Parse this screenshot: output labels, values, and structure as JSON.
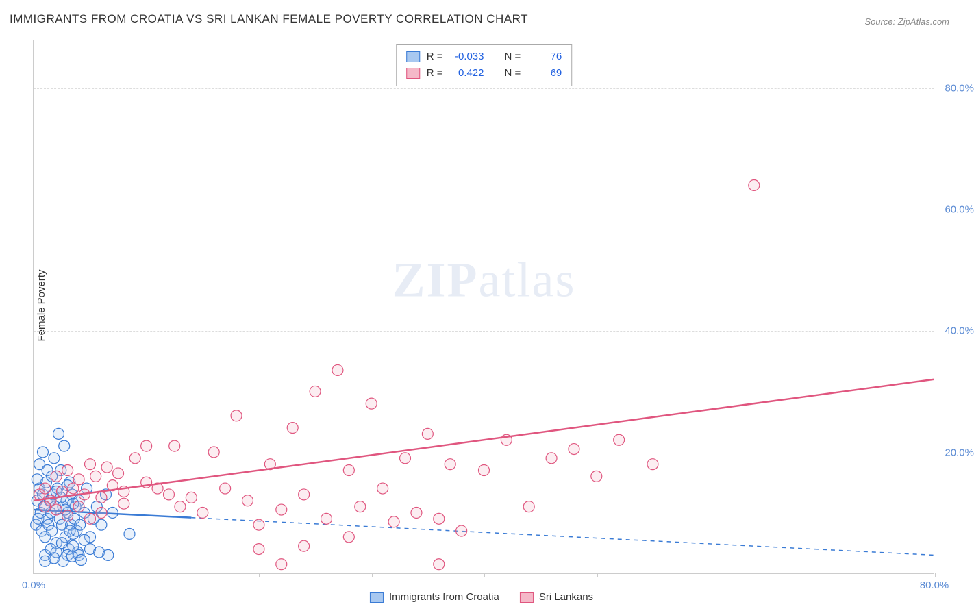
{
  "title": "IMMIGRANTS FROM CROATIA VS SRI LANKAN FEMALE POVERTY CORRELATION CHART",
  "source": "Source: ZipAtlas.com",
  "ylabel": "Female Poverty",
  "watermark_bold": "ZIP",
  "watermark_light": "atlas",
  "chart": {
    "type": "scatter",
    "background_color": "#ffffff",
    "grid_color": "#dddddd",
    "axis_color": "#cccccc",
    "tick_label_color": "#5b8bd4",
    "xlim": [
      0,
      80
    ],
    "ylim": [
      0,
      88
    ],
    "ytick_values": [
      20,
      40,
      60,
      80
    ],
    "ytick_labels": [
      "20.0%",
      "40.0%",
      "60.0%",
      "80.0%"
    ],
    "xtick_values": [
      0,
      10,
      20,
      30,
      40,
      50,
      60,
      70,
      80
    ],
    "x_origin_label": "0.0%",
    "x_end_label": "80.0%",
    "marker_radius": 8,
    "marker_stroke_width": 1.2,
    "marker_fill_opacity": 0.25,
    "trend_line_width": 2.5
  },
  "series": [
    {
      "key": "croatia",
      "label": "Immigrants from Croatia",
      "color_stroke": "#3a7bd5",
      "color_fill": "#a8c8f0",
      "R": "-0.033",
      "N": "76",
      "trend": {
        "x1": 0,
        "y1": 10.5,
        "x2": 80,
        "y2": 3.0,
        "solid_until_x": 14,
        "dashed_after": true
      },
      "points": [
        [
          0.2,
          8
        ],
        [
          0.3,
          12
        ],
        [
          0.4,
          9
        ],
        [
          0.5,
          14
        ],
        [
          0.6,
          10
        ],
        [
          0.7,
          7
        ],
        [
          0.8,
          13
        ],
        [
          0.9,
          11
        ],
        [
          1.0,
          6
        ],
        [
          1.1,
          15
        ],
        [
          1.2,
          9
        ],
        [
          1.3,
          8
        ],
        [
          1.4,
          12
        ],
        [
          1.5,
          10
        ],
        [
          1.6,
          7
        ],
        [
          1.7,
          13
        ],
        [
          1.8,
          19
        ],
        [
          1.9,
          11
        ],
        [
          2.0,
          5
        ],
        [
          2.1,
          14
        ],
        [
          2.2,
          23
        ],
        [
          2.3,
          9
        ],
        [
          2.4,
          17
        ],
        [
          2.5,
          8
        ],
        [
          2.6,
          11
        ],
        [
          2.7,
          21
        ],
        [
          2.8,
          6
        ],
        [
          2.9,
          12
        ],
        [
          3.0,
          10
        ],
        [
          3.1,
          4
        ],
        [
          3.2,
          15
        ],
        [
          3.3,
          8
        ],
        [
          3.4,
          13
        ],
        [
          3.5,
          6.5
        ],
        [
          3.6,
          9
        ],
        [
          3.7,
          11
        ],
        [
          3.8,
          7
        ],
        [
          3.9,
          3.5
        ],
        [
          4.0,
          12
        ],
        [
          4.1,
          8
        ],
        [
          4.5,
          10
        ],
        [
          4.7,
          14
        ],
        [
          5.0,
          6
        ],
        [
          5.3,
          9
        ],
        [
          5.6,
          11
        ],
        [
          6.0,
          8
        ],
        [
          6.4,
          13
        ],
        [
          7.0,
          10
        ],
        [
          1.0,
          3
        ],
        [
          1.5,
          4
        ],
        [
          2.0,
          3.5
        ],
        [
          2.5,
          5
        ],
        [
          3.0,
          3
        ],
        [
          3.5,
          4.5
        ],
        [
          4.0,
          3
        ],
        [
          4.5,
          5.5
        ],
        [
          0.5,
          18
        ],
        [
          0.8,
          20
        ],
        [
          1.2,
          17
        ],
        [
          1.6,
          16
        ],
        [
          2.0,
          13.5
        ],
        [
          2.4,
          12.5
        ],
        [
          3.0,
          14.5
        ],
        [
          3.5,
          11.5
        ],
        [
          1.0,
          2
        ],
        [
          1.8,
          2.5
        ],
        [
          2.6,
          2
        ],
        [
          3.4,
          2.8
        ],
        [
          4.2,
          2.2
        ],
        [
          5.0,
          4
        ],
        [
          5.8,
          3.5
        ],
        [
          6.6,
          3
        ],
        [
          8.5,
          6.5
        ],
        [
          0.3,
          15.5
        ],
        [
          3.2,
          7
        ],
        [
          2.8,
          10.5
        ]
      ]
    },
    {
      "key": "srilanka",
      "label": "Sri Lankans",
      "color_stroke": "#e0567f",
      "color_fill": "#f5b8c8",
      "R": "0.422",
      "N": "69",
      "trend": {
        "x1": 0,
        "y1": 12,
        "x2": 80,
        "y2": 32,
        "solid_until_x": 80,
        "dashed_after": false
      },
      "points": [
        [
          0.5,
          13
        ],
        [
          1,
          14
        ],
        [
          1.5,
          12
        ],
        [
          2,
          16
        ],
        [
          2.5,
          13.5
        ],
        [
          3,
          17
        ],
        [
          3.5,
          14
        ],
        [
          4,
          15.5
        ],
        [
          4.5,
          13
        ],
        [
          5,
          18
        ],
        [
          5.5,
          16
        ],
        [
          6,
          12.5
        ],
        [
          6.5,
          17.5
        ],
        [
          7,
          14.5
        ],
        [
          7.5,
          16.5
        ],
        [
          8,
          13.5
        ],
        [
          9,
          19
        ],
        [
          10,
          15
        ],
        [
          11,
          14
        ],
        [
          12,
          13
        ],
        [
          12.5,
          21
        ],
        [
          13,
          11
        ],
        [
          14,
          12.5
        ],
        [
          15,
          10
        ],
        [
          16,
          20
        ],
        [
          17,
          14
        ],
        [
          18,
          26
        ],
        [
          19,
          12
        ],
        [
          20,
          8
        ],
        [
          21,
          18
        ],
        [
          22,
          10.5
        ],
        [
          23,
          24
        ],
        [
          24,
          13
        ],
        [
          25,
          30
        ],
        [
          26,
          9
        ],
        [
          27,
          33.5
        ],
        [
          28,
          17
        ],
        [
          29,
          11
        ],
        [
          30,
          28
        ],
        [
          31,
          14
        ],
        [
          32,
          8.5
        ],
        [
          33,
          19
        ],
        [
          34,
          10
        ],
        [
          35,
          23
        ],
        [
          36,
          9
        ],
        [
          36,
          1.5
        ],
        [
          37,
          18
        ],
        [
          38,
          7
        ],
        [
          40,
          17
        ],
        [
          42,
          22
        ],
        [
          44,
          11
        ],
        [
          46,
          19
        ],
        [
          48,
          20.5
        ],
        [
          50,
          16
        ],
        [
          52,
          22
        ],
        [
          55,
          18
        ],
        [
          64,
          64
        ],
        [
          20,
          4
        ],
        [
          24,
          4.5
        ],
        [
          28,
          6
        ],
        [
          10,
          21
        ],
        [
          8,
          11.5
        ],
        [
          6,
          10
        ],
        [
          4,
          11
        ],
        [
          2,
          10.5
        ],
        [
          1,
          11
        ],
        [
          3,
          9.5
        ],
        [
          5,
          9
        ],
        [
          22,
          1.5
        ]
      ]
    }
  ],
  "top_legend": {
    "R_label": "R =",
    "N_label": "N ="
  },
  "bottom_legend": {
    "items": [
      "croatia",
      "srilanka"
    ]
  }
}
